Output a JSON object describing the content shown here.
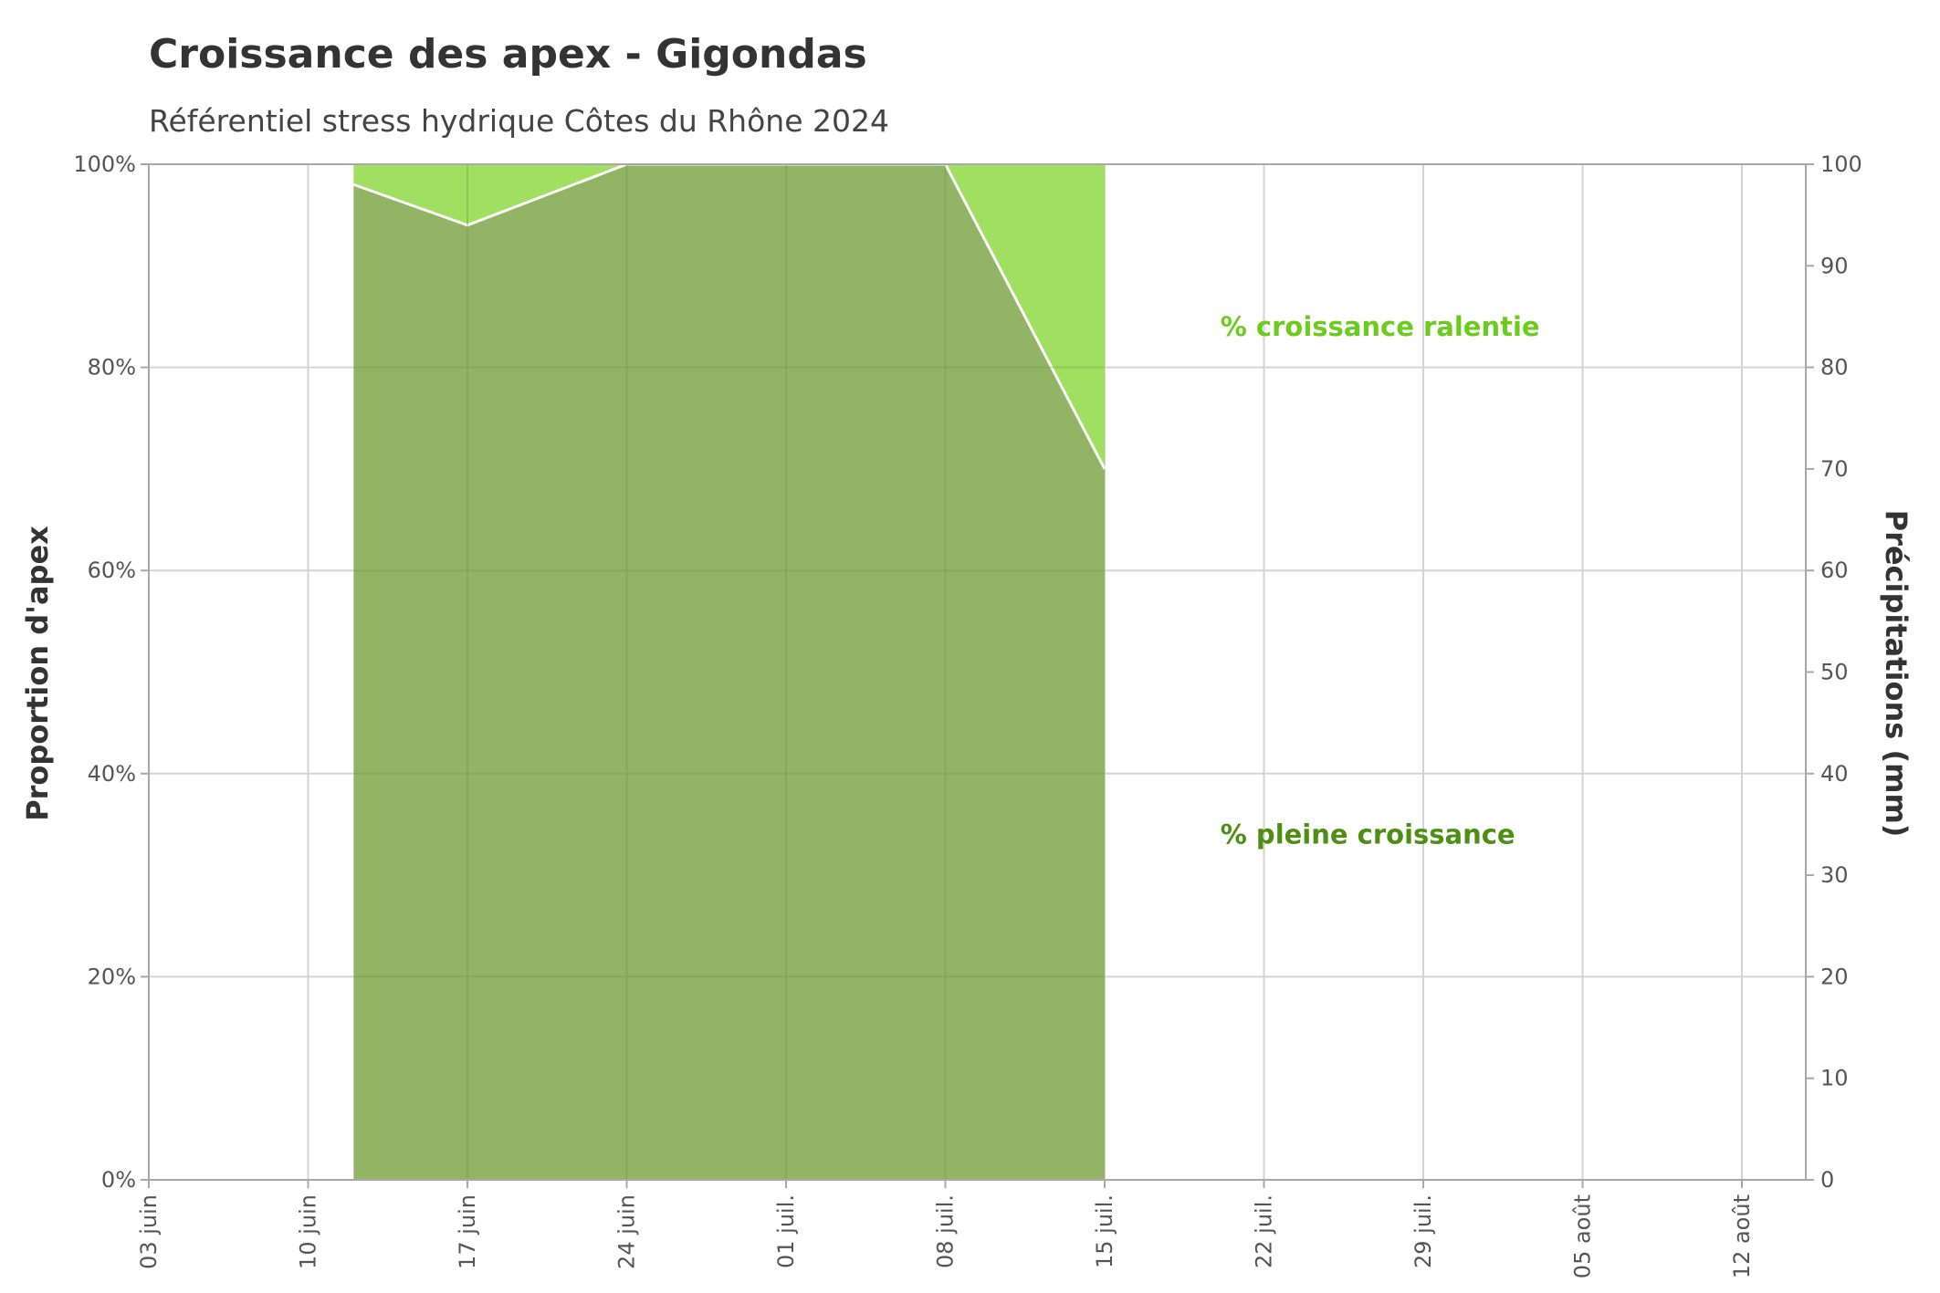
{
  "chart_data": {
    "type": "area",
    "title": "Croissance des apex - Gigondas",
    "subtitle": "Référentiel stress hydrique Côtes du Rhône 2024",
    "ylabel": "Proportion d'apex",
    "y2label": "Précipitations (mm)",
    "x_ticks": [
      "03 juin",
      "10 juin",
      "17 juin",
      "24 juin",
      "01 juil.",
      "08 juil.",
      "15 juil.",
      "22 juil.",
      "29 juil.",
      "05 août",
      "12 août"
    ],
    "x_range": [
      "2024-06-03",
      "2024-08-15"
    ],
    "ylim": [
      0,
      100
    ],
    "y_ticks": [
      0,
      20,
      40,
      60,
      80,
      100
    ],
    "y_tick_labels": [
      "0%",
      "20%",
      "40%",
      "60%",
      "80%",
      "100%"
    ],
    "y2lim": [
      0,
      100
    ],
    "y2_ticks": [
      0,
      10,
      20,
      30,
      40,
      50,
      60,
      70,
      80,
      90,
      100
    ],
    "grid": true,
    "series": [
      {
        "name": "% pleine croissance",
        "color": "#8db25f",
        "x": [
          "2024-06-12",
          "2024-06-17",
          "2024-06-24",
          "2024-07-08",
          "2024-07-15"
        ],
        "values": [
          98,
          94,
          100,
          100,
          70
        ]
      },
      {
        "name": "% croissance ralentie",
        "color": "#a0df5f",
        "x": [
          "2024-06-12",
          "2024-06-17",
          "2024-06-24",
          "2024-07-08",
          "2024-07-15"
        ],
        "values": [
          2,
          6,
          0,
          0,
          30
        ]
      }
    ],
    "annotations": [
      {
        "text": "%  croissance ralentie",
        "color": "#6ccc1e",
        "x": "2024-07-18",
        "y": 84
      },
      {
        "text": "% pleine croissance",
        "color": "#4d8f12",
        "x": "2024-07-18",
        "y": 34
      }
    ]
  }
}
